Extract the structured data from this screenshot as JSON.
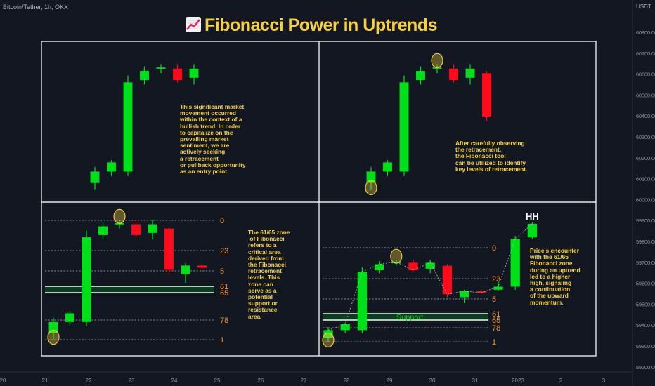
{
  "header": {
    "symbol": "Bitcoin/Tether, 1h, OKX",
    "currency": "USDT",
    "title": "Fibonacci Power in Uptrends"
  },
  "chart_data": {
    "type": "candlestick",
    "title": "Fibonacci Power in Uptrends",
    "x_axis": {
      "ticks": [
        "20",
        "21",
        "22",
        "23",
        "24",
        "25",
        "26",
        "27",
        "28",
        "29",
        "30",
        "31",
        "2023",
        "2",
        "3"
      ]
    },
    "y_axis": {
      "ticks": [
        "60800.00",
        "60700.00",
        "60600.00",
        "60500.00",
        "60400.00",
        "60300.00",
        "60200.00",
        "60100.00",
        "60000.00",
        "59900.00",
        "59800.00",
        "59700.00",
        "59600.00",
        "59500.00",
        "59400.00",
        "59300.00",
        "59200.00"
      ],
      "range": [
        59200,
        60800
      ]
    },
    "colors": {
      "up": "#00e01a",
      "down": "#ff0a1a",
      "text": "#f5d042",
      "fib_level": "#f7942b",
      "frame": "#e8e8e8",
      "highlight": "#f5d042"
    },
    "panels": [
      {
        "name": "top-left",
        "note": "This significant market\nmovement occurred\nwithin the context of a\nbullish trend. In order\nto capitalize on the\nprevailing market\nsentiment, we are\nactively seeking\na retracement\nor pullback opportunity\nas an entry point.",
        "candles": [
          {
            "o": 60130,
            "h": 60200,
            "l": 60100,
            "c": 60180
          },
          {
            "o": 60180,
            "h": 60230,
            "l": 60160,
            "c": 60220
          },
          {
            "o": 60180,
            "h": 60600,
            "l": 60160,
            "c": 60570
          },
          {
            "o": 60580,
            "h": 60640,
            "l": 60560,
            "c": 60620
          },
          {
            "o": 60630,
            "h": 60650,
            "l": 60610,
            "c": 60635
          },
          {
            "o": 60630,
            "h": 60650,
            "l": 60570,
            "c": 60580
          },
          {
            "o": 60590,
            "h": 60650,
            "l": 60560,
            "c": 60630
          }
        ],
        "fib": [],
        "zone_label": "",
        "top_label": "",
        "highlights": []
      },
      {
        "name": "top-right",
        "note": "After carefully observing\nthe retracement,\nthe Fibonacci tool\ncan be utilized to identify\nkey levels of retracement.",
        "candles": [
          {
            "o": 60130,
            "h": 60200,
            "l": 60100,
            "c": 60180
          },
          {
            "o": 60180,
            "h": 60230,
            "l": 60160,
            "c": 60220
          },
          {
            "o": 60180,
            "h": 60600,
            "l": 60160,
            "c": 60570
          },
          {
            "o": 60580,
            "h": 60640,
            "l": 60560,
            "c": 60620
          },
          {
            "o": 60630,
            "h": 60650,
            "l": 60610,
            "c": 60635
          },
          {
            "o": 60630,
            "h": 60650,
            "l": 60570,
            "c": 60580
          },
          {
            "o": 60590,
            "h": 60650,
            "l": 60560,
            "c": 60630
          },
          {
            "o": 60610,
            "h": 60620,
            "l": 60400,
            "c": 60420
          }
        ],
        "fib": [],
        "zone_label": "",
        "top_label": "",
        "highlights": [
          {
            "candle": 0,
            "at": "low"
          },
          {
            "candle": 4,
            "at": "high"
          }
        ]
      },
      {
        "name": "bottom-left",
        "note": "The 61/65 zone\n of Fibonacci\nrefers to a\ncritical area\nderived from\nthe Fibonacci\nretracement\nlevels. This\nzone can\nserve as a\npotential\nsupport or\nresistance\narea.",
        "candles": [
          {
            "o": 60130,
            "h": 60200,
            "l": 60100,
            "c": 60180
          },
          {
            "o": 60180,
            "h": 60230,
            "l": 60160,
            "c": 60220
          },
          {
            "o": 60180,
            "h": 60600,
            "l": 60160,
            "c": 60570
          },
          {
            "o": 60580,
            "h": 60640,
            "l": 60560,
            "c": 60620
          },
          {
            "o": 60630,
            "h": 60650,
            "l": 60610,
            "c": 60635
          },
          {
            "o": 60630,
            "h": 60650,
            "l": 60570,
            "c": 60580
          },
          {
            "o": 60590,
            "h": 60650,
            "l": 60560,
            "c": 60630
          },
          {
            "o": 60610,
            "h": 60620,
            "l": 60400,
            "c": 60420
          },
          {
            "o": 60400,
            "h": 60450,
            "l": 60360,
            "c": 60440
          },
          {
            "o": 60440,
            "h": 60450,
            "l": 60425,
            "c": 60430
          }
        ],
        "fib": [
          "0",
          "23",
          "5",
          "61",
          "65",
          "78",
          "1"
        ],
        "zone_label": "",
        "top_label": "",
        "highlights": [
          {
            "candle": 0,
            "at": "low"
          },
          {
            "candle": 4,
            "at": "high"
          }
        ]
      },
      {
        "name": "bottom-right",
        "note": "Price's encounter\nwith the 61/65\nFibonacci zone\nduring an uptrend\nled to a higher\nhigh, signaling\na continuation\nof the upward\nmomentum.",
        "candles": [
          {
            "o": 60130,
            "h": 60200,
            "l": 60100,
            "c": 60180
          },
          {
            "o": 60180,
            "h": 60230,
            "l": 60160,
            "c": 60220
          },
          {
            "o": 60180,
            "h": 60600,
            "l": 60160,
            "c": 60570
          },
          {
            "o": 60580,
            "h": 60640,
            "l": 60560,
            "c": 60620
          },
          {
            "o": 60630,
            "h": 60650,
            "l": 60610,
            "c": 60635
          },
          {
            "o": 60630,
            "h": 60650,
            "l": 60570,
            "c": 60580
          },
          {
            "o": 60590,
            "h": 60650,
            "l": 60560,
            "c": 60630
          },
          {
            "o": 60610,
            "h": 60620,
            "l": 60400,
            "c": 60420
          },
          {
            "o": 60400,
            "h": 60450,
            "l": 60360,
            "c": 60440
          },
          {
            "o": 60440,
            "h": 60450,
            "l": 60425,
            "c": 60430
          },
          {
            "o": 60450,
            "h": 60510,
            "l": 60440,
            "c": 60470
          },
          {
            "o": 60470,
            "h": 60810,
            "l": 60450,
            "c": 60790
          },
          {
            "o": 60800,
            "h": 60900,
            "l": 60790,
            "c": 60890
          }
        ],
        "fib": [
          "0",
          "23",
          "5",
          "61",
          "65",
          "78",
          "1"
        ],
        "zone_label": "Support",
        "top_label": "HH",
        "highlights": [
          {
            "candle": 0,
            "at": "low"
          },
          {
            "candle": 4,
            "at": "high"
          }
        ]
      }
    ]
  }
}
